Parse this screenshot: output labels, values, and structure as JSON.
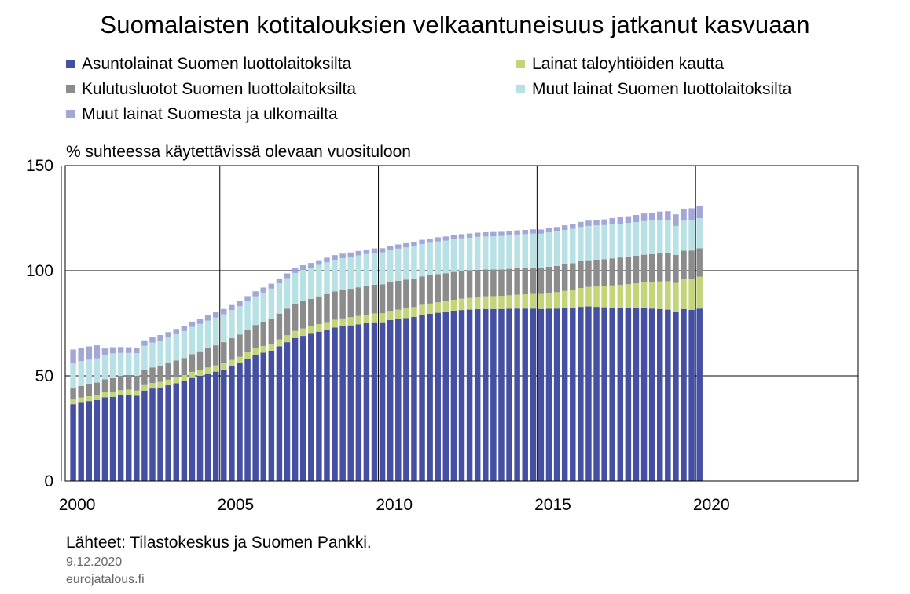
{
  "chart_data": {
    "type": "bar",
    "stacked": true,
    "title": "Suomalaisten kotitalouksien velkaantuneisuus jatkanut kasvuaan",
    "ylabel": "% suhteessa käytettävissä olevaan vuosituloon",
    "ylim": [
      0,
      150
    ],
    "yticks": [
      0,
      50,
      100,
      150
    ],
    "xlim": [
      1999.75,
      2024.75
    ],
    "xticks": [
      2000,
      2005,
      2010,
      2015,
      2020
    ],
    "grid": true,
    "legend_position": "top",
    "x": [
      2000.0,
      2000.25,
      2000.5,
      2000.75,
      2001.0,
      2001.25,
      2001.5,
      2001.75,
      2002.0,
      2002.25,
      2002.5,
      2002.75,
      2003.0,
      2003.25,
      2003.5,
      2003.75,
      2004.0,
      2004.25,
      2004.5,
      2004.75,
      2005.0,
      2005.25,
      2005.5,
      2005.75,
      2006.0,
      2006.25,
      2006.5,
      2006.75,
      2007.0,
      2007.25,
      2007.5,
      2007.75,
      2008.0,
      2008.25,
      2008.5,
      2008.75,
      2009.0,
      2009.25,
      2009.5,
      2009.75,
      2010.0,
      2010.25,
      2010.5,
      2010.75,
      2011.0,
      2011.25,
      2011.5,
      2011.75,
      2012.0,
      2012.25,
      2012.5,
      2012.75,
      2013.0,
      2013.25,
      2013.5,
      2013.75,
      2014.0,
      2014.25,
      2014.5,
      2014.75,
      2015.0,
      2015.25,
      2015.5,
      2015.75,
      2016.0,
      2016.25,
      2016.5,
      2016.75,
      2017.0,
      2017.25,
      2017.5,
      2017.75,
      2018.0,
      2018.25,
      2018.5,
      2018.75,
      2019.0,
      2019.25,
      2019.5,
      2019.75
    ],
    "series": [
      {
        "name": "Asuntolainat Suomen luottolaitoksilta",
        "color": "#4550a2",
        "values": [
          36.5,
          37.5,
          38,
          38.5,
          39.8,
          40,
          40.8,
          41,
          40.5,
          43,
          44,
          44.5,
          45.5,
          46.5,
          47.5,
          49,
          50,
          51,
          52,
          53,
          54.5,
          56,
          58,
          60,
          61,
          62,
          64,
          66,
          68,
          69,
          70,
          71,
          72,
          73,
          73.5,
          74,
          74.5,
          75,
          75.5,
          75.5,
          76.5,
          77,
          77.5,
          78,
          79,
          79.5,
          80,
          80.5,
          81,
          81.3,
          81.5,
          81.7,
          81.8,
          81.8,
          81.8,
          81.9,
          82,
          82,
          82,
          81.8,
          81.9,
          82,
          82.2,
          82.4,
          82.8,
          83,
          82.8,
          82.6,
          82.5,
          82.4,
          82.3,
          82.2,
          82.1,
          82,
          81.8,
          81.5,
          80.3,
          81.8,
          81.4,
          82
        ]
      },
      {
        "name": "Lainat taloyhtiöiden kautta",
        "color": "#c3d479",
        "values": [
          2.2,
          2.2,
          2.3,
          2.3,
          2.4,
          2.4,
          2.4,
          2.5,
          2.5,
          2.6,
          2.6,
          2.7,
          2.7,
          2.8,
          2.8,
          2.9,
          2.9,
          3,
          3,
          3,
          3.1,
          3.1,
          3.2,
          3.2,
          3.2,
          3.3,
          3.3,
          3.3,
          3.4,
          3.5,
          3.5,
          3.6,
          3.6,
          3.7,
          3.8,
          3.9,
          4,
          4.1,
          4.2,
          4.3,
          4.4,
          4.5,
          4.6,
          4.7,
          4.8,
          4.9,
          5,
          5,
          5.2,
          5.4,
          5.6,
          5.8,
          6,
          6.1,
          6.2,
          6.4,
          6.6,
          6.8,
          7,
          7.2,
          7.5,
          7.8,
          8.2,
          8.6,
          9,
          9.3,
          9.7,
          10.1,
          10.5,
          10.9,
          11.3,
          11.8,
          12.3,
          12.7,
          13.1,
          13.5,
          13.9,
          14.3,
          14.7,
          15.2
        ]
      },
      {
        "name": "Kulutusluotot Suomen luottolaitoksilta",
        "color": "#8c8c8c",
        "values": [
          5.3,
          5.5,
          5.8,
          6,
          6.2,
          6.5,
          6.7,
          6.9,
          7,
          7.2,
          7.4,
          7.6,
          7.8,
          8,
          8.2,
          8.4,
          8.8,
          9.2,
          9.5,
          10,
          10.3,
          10.5,
          10.8,
          11,
          11.6,
          12,
          12.3,
          12.6,
          12.8,
          13,
          13.1,
          13.2,
          13.3,
          13.4,
          13.5,
          13.5,
          13.6,
          13.6,
          13.6,
          13.7,
          13.7,
          13.7,
          13.7,
          13.6,
          13.5,
          13.5,
          13.4,
          13.3,
          13.2,
          13.1,
          13,
          12.9,
          12.8,
          12.7,
          12.6,
          12.6,
          12.6,
          12.5,
          12.5,
          12.4,
          12.5,
          12.5,
          12.6,
          12.6,
          12.7,
          12.7,
          12.8,
          12.8,
          12.9,
          13,
          13,
          13.1,
          13.2,
          13.2,
          13.3,
          13.3,
          13.3,
          13.4,
          13.5,
          13.5
        ]
      },
      {
        "name": "Muut lainat Suomen luottolaitoksilta",
        "color": "#b7e1e4",
        "values": [
          12,
          11.8,
          11.6,
          11.5,
          11.6,
          11.8,
          11,
          10.5,
          10.8,
          11.5,
          11.8,
          12,
          12.2,
          12.5,
          12.8,
          13,
          13,
          13.1,
          13.2,
          13.3,
          13.4,
          13.5,
          13.5,
          13.6,
          13.8,
          14.2,
          14.4,
          14.5,
          14.7,
          14.8,
          14.9,
          15,
          15.1,
          15.1,
          15.2,
          15.2,
          15.2,
          15.2,
          15.2,
          15.2,
          15.3,
          15.3,
          15.3,
          15.4,
          15.4,
          15.4,
          15.5,
          15.5,
          15.5,
          15.6,
          15.6,
          15.7,
          15.7,
          15.8,
          15.9,
          16,
          16,
          16.1,
          16.2,
          16.2,
          16.3,
          16.4,
          16.4,
          16.3,
          16.3,
          16.3,
          16.3,
          16.2,
          16.2,
          16.1,
          16.1,
          16,
          16,
          15.9,
          15.9,
          15.8,
          13.8,
          14.3,
          14.2,
          14.3
        ]
      },
      {
        "name": "Muut lainat Suomesta ja ulkomailta",
        "color": "#a3a7d7",
        "values": [
          6.5,
          6.4,
          6.3,
          6.2,
          3,
          2.9,
          2.8,
          2.7,
          2.6,
          2.6,
          2.6,
          2.6,
          2.6,
          2.5,
          2.5,
          2.5,
          2.5,
          2.5,
          2.5,
          2.5,
          2.4,
          2.4,
          2.4,
          2.4,
          2.4,
          2.3,
          2.3,
          2.3,
          2.3,
          2.3,
          2.2,
          2.2,
          2.2,
          2.2,
          2.1,
          2.1,
          2.1,
          2.1,
          2.1,
          2.0,
          2.0,
          2.0,
          2.0,
          2.0,
          2.0,
          2.0,
          2.0,
          2.0,
          2.0,
          2.0,
          2.0,
          2.0,
          2.0,
          2.0,
          2.0,
          2.0,
          2.0,
          2.0,
          2.0,
          2.0,
          2.1,
          2.1,
          2.2,
          2.3,
          2.4,
          2.5,
          2.6,
          2.7,
          2.9,
          3.0,
          3.2,
          3.4,
          3.6,
          3.8,
          4.0,
          4.2,
          5.5,
          5.7,
          5.9,
          6.0
        ]
      }
    ]
  },
  "footer": {
    "source": "Lähteet: Tilastokeskus ja Suomen Pankki.",
    "date": "9.12.2020",
    "site": "eurojatalous.fi"
  }
}
